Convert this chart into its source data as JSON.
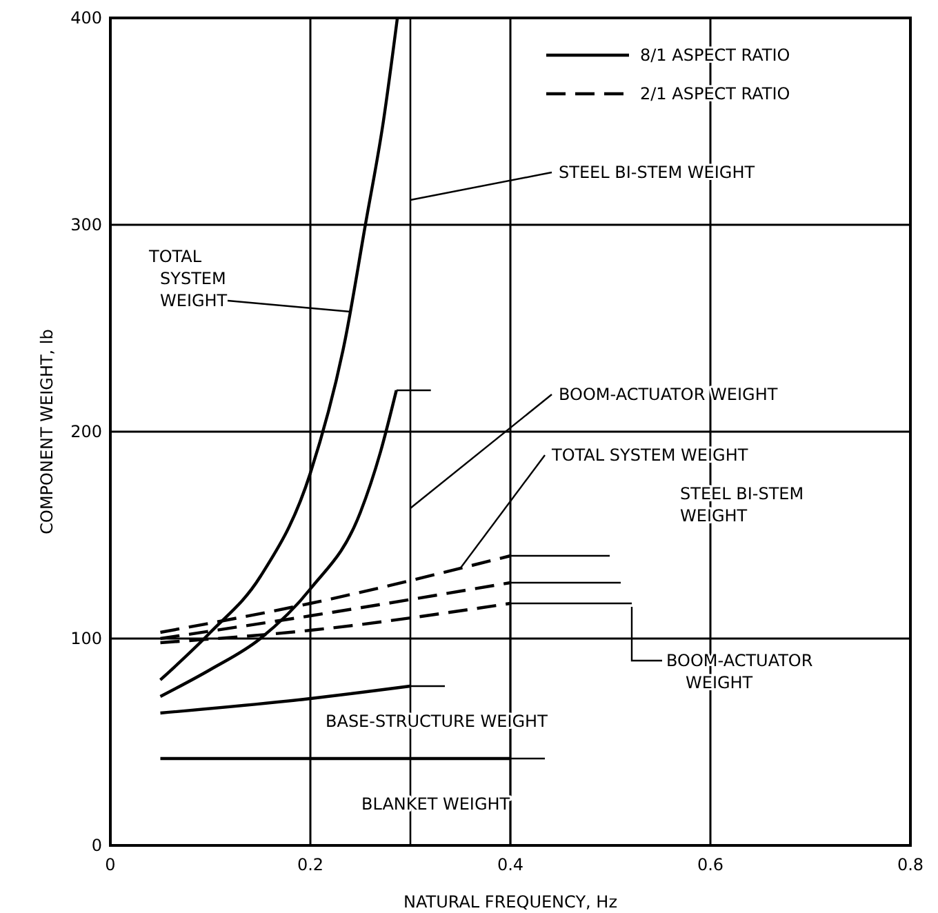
{
  "chart_data": {
    "type": "line",
    "xlabel": "NATURAL FREQUENCY, Hz",
    "ylabel": "COMPONENT WEIGHT, lb",
    "xlim": [
      0,
      0.8
    ],
    "xticks": [
      0,
      0.2,
      0.4,
      0.6,
      0.8
    ],
    "ylim": [
      0,
      400
    ],
    "yticks": [
      0,
      100,
      200,
      300,
      400
    ],
    "grid": true,
    "legend": "top right",
    "series": [
      {
        "name": "8/1 ASPECT RATIO",
        "color": "#000000",
        "line_style": "solid",
        "x": [
          0.05,
          0.1,
          0.15,
          0.2,
          0.235,
          0.255,
          0.273,
          0.287
        ],
        "values": [
          80,
          103,
          130,
          180,
          245,
          300,
          350,
          400
        ]
      },
      {
        "color": "#000000",
        "line_style": "solid",
        "x": [
          0.05,
          0.1,
          0.15,
          0.2,
          0.25,
          0.27,
          0.286
        ],
        "values": [
          72,
          85,
          100,
          124,
          161,
          190,
          220
        ]
      },
      {
        "color": "#000000",
        "line_style": "solid",
        "x": [
          0.05,
          0.2,
          0.3
        ],
        "values": [
          64,
          71,
          77
        ]
      },
      {
        "color": "#000000",
        "line_style": "solid",
        "x": [
          0.05,
          0.4
        ],
        "values": [
          42,
          42
        ]
      },
      {
        "name": "2/1 ASPECT RATIO",
        "color": "#000000",
        "line_style": "dashed",
        "x": [
          0.05,
          0.2,
          0.4
        ],
        "values": [
          103,
          117,
          140
        ]
      },
      {
        "color": "#000000",
        "line_style": "dashed",
        "x": [
          0.05,
          0.2,
          0.4
        ],
        "values": [
          100,
          111,
          127
        ]
      },
      {
        "color": "#000000",
        "line_style": "dashed",
        "x": [
          0.05,
          0.2,
          0.4
        ],
        "values": [
          98,
          104,
          117
        ]
      }
    ],
    "ref_lines": [
      {
        "axis": "x",
        "value": 0.3
      }
    ],
    "annotations": [
      {
        "text": "TOTAL SYSTEM WEIGHT",
        "x": 0.24,
        "y": 258
      },
      {
        "text": "STEEL BI-STEM WEIGHT",
        "x": 0.3,
        "y": 312
      },
      {
        "text": "BOOM-ACTUATOR WEIGHT",
        "x": 0.3,
        "y": 163
      },
      {
        "text": "TOTAL SYSTEM WEIGHT",
        "x": 0.35,
        "y": 134
      },
      "STEEL BI-STEM WEIGHT",
      "BOOM-ACTUATOR WEIGHT",
      "BASE-STRUCTURE WEIGHT",
      "BLANKET WEIGHT"
    ]
  }
}
